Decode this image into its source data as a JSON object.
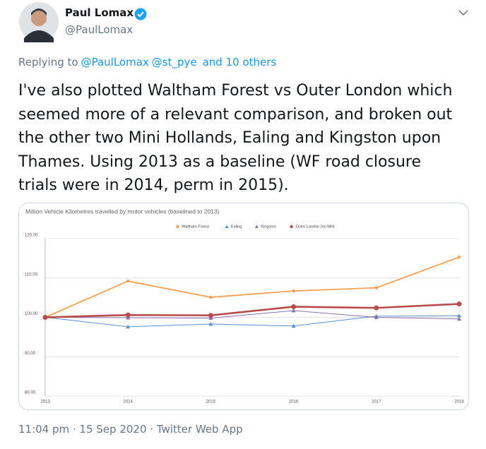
{
  "tweet": {
    "author_name": "Paul Lomax",
    "author_handle": "@PaulLomax",
    "replying_to": "Replying to",
    "mentions": [
      "@PaulLomax",
      "@st_pye",
      "and 10 others"
    ],
    "text_lines": [
      "I've also plotted Waltham Forest vs Outer London which",
      "seemed more of a relevant comparison, and broken out",
      "the other two Mini Hollands, Ealing and Kingston upon",
      "Thames. Using 2013 as a baseline (WF road closure",
      "trials were in 2014, perm in 2015)."
    ],
    "timestamp": "11:04 pm · 15 Sep 2020 · Twitter Web App"
  },
  "chart_data": {
    "type": "line",
    "title": "Million Vehicle Kilometres travelled by motor vehicles (baselined to 2013)",
    "categories": [
      "2013",
      "2014",
      "2015",
      "2016",
      "2017",
      "2018"
    ],
    "series": [
      {
        "name": "Waltham Forest",
        "color": "#f2a254",
        "marker": "circle",
        "values": [
          100,
          109.2,
          105.1,
          106.7,
          107.5,
          115.3
        ]
      },
      {
        "name": "Ealing",
        "color": "#5b8fc9",
        "marker": "triangle",
        "values": [
          100,
          97.6,
          98.3,
          97.8,
          100.3,
          100.4
        ]
      },
      {
        "name": "Kingston",
        "color": "#8a72a8",
        "marker": "triangle",
        "values": [
          100,
          99.9,
          99.8,
          101.7,
          100.0,
          99.6
        ]
      },
      {
        "name": "Outer London (no MH)",
        "color": "#b84c4c",
        "marker": "circle",
        "values": [
          100,
          100.6,
          100.5,
          102.7,
          102.4,
          103.4
        ]
      }
    ],
    "ylim": [
      80,
      120
    ],
    "yticks": [
      {
        "value": 80,
        "label": "80.00"
      },
      {
        "value": 90,
        "label": "90.00"
      },
      {
        "value": 100,
        "label": "100.00"
      },
      {
        "value": 110,
        "label": "110.00"
      },
      {
        "value": 120,
        "label": "120.00"
      }
    ],
    "grid": true,
    "legend": "top"
  }
}
